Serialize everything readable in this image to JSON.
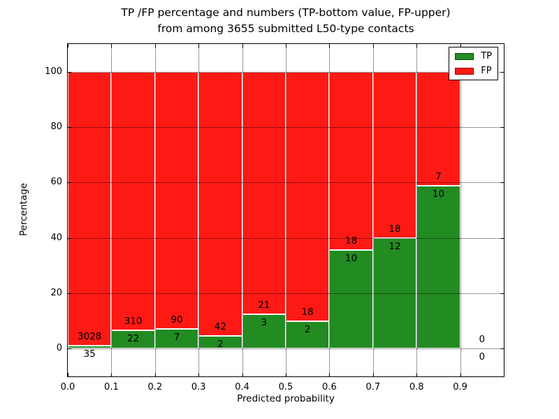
{
  "chart_data": {
    "type": "bar",
    "stacked": true,
    "title_line1": "TP /FP percentage and numbers (TP-bottom value, FP-upper)",
    "title_line2": "from among 3655 submitted L50-type contacts",
    "xlabel": "Predicted probability",
    "ylabel": "Percentage",
    "total_contacts": 3655,
    "xlim": [
      0.0,
      1.0
    ],
    "ylim": [
      -10,
      110
    ],
    "xticks": [
      "0.0",
      "0.1",
      "0.2",
      "0.3",
      "0.4",
      "0.5",
      "0.6",
      "0.7",
      "0.8",
      "0.9"
    ],
    "yticks": [
      0,
      20,
      40,
      60,
      80,
      100
    ],
    "grid": "dotted",
    "bin_width": 0.1,
    "bin_edges": [
      0.0,
      0.1,
      0.2,
      0.3,
      0.4,
      0.5,
      0.6,
      0.7,
      0.8,
      0.9,
      1.0
    ],
    "categories": [
      "0.0-0.1",
      "0.1-0.2",
      "0.2-0.3",
      "0.3-0.4",
      "0.4-0.5",
      "0.5-0.6",
      "0.6-0.7",
      "0.7-0.8",
      "0.8-0.9",
      "0.9-1.0"
    ],
    "series": [
      {
        "name": "TP",
        "color": "#228b22",
        "counts": [
          35,
          22,
          7,
          2,
          3,
          2,
          10,
          12,
          10,
          0
        ]
      },
      {
        "name": "FP",
        "color": "#fd1a15",
        "counts": [
          3028,
          310,
          90,
          42,
          21,
          18,
          18,
          18,
          7,
          0
        ]
      }
    ],
    "tp_percent": [
      1.14,
      6.63,
      7.22,
      4.55,
      12.5,
      10.0,
      35.71,
      40.0,
      58.82,
      0
    ],
    "legend_position": "upper right"
  }
}
